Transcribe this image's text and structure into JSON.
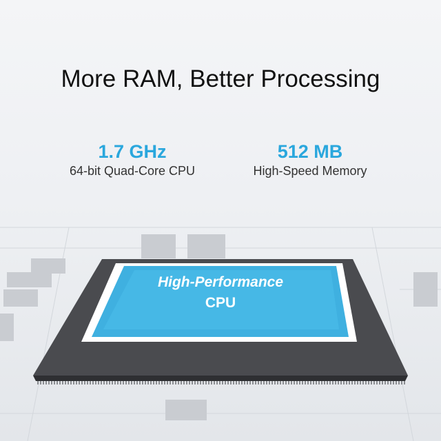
{
  "header": {
    "title": "More RAM, Better Processing"
  },
  "stats": [
    {
      "value": "1.7 GHz",
      "label": "64-bit Quad-Core CPU"
    },
    {
      "value": "512 MB",
      "label": "High-Speed Memory"
    }
  ],
  "chip": {
    "line1": "High-Performance",
    "line2": "CPU"
  },
  "colors": {
    "accent": "#2aa7dd",
    "chip_blue": "#3fb0e0",
    "chip_body": "#4a4b4f"
  }
}
